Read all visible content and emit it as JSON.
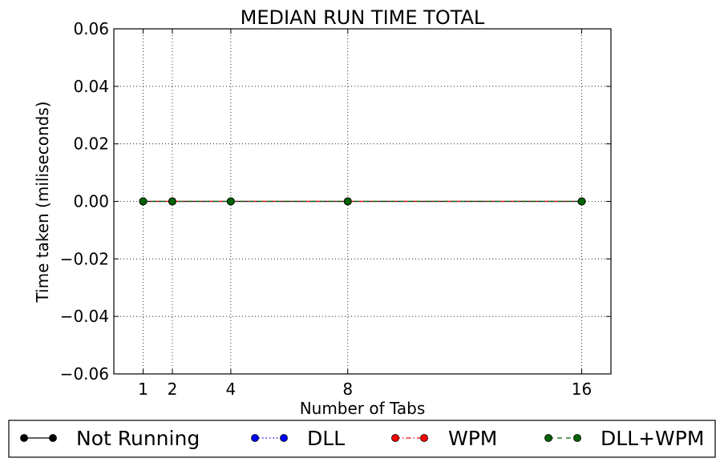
{
  "chart_data": {
    "type": "line",
    "title": "MEDIAN RUN TIME TOTAL",
    "xlabel": "Number of Tabs",
    "ylabel": "Time taken (miliseconds)",
    "xlim": [
      0,
      17
    ],
    "ylim": [
      -0.06,
      0.06
    ],
    "x_ticks": [
      1,
      2,
      4,
      8,
      16
    ],
    "y_ticks": [
      0.06,
      0.04,
      0.02,
      0.0,
      -0.02,
      -0.04,
      -0.06
    ],
    "y_tick_labels": [
      "0.06",
      "0.04",
      "0.02",
      "0.00",
      "−0.02",
      "−0.04",
      "−0.06"
    ],
    "grid": true,
    "legend_position": "bottom-outside",
    "x": [
      1,
      2,
      4,
      8,
      16
    ],
    "series": [
      {
        "name": "Not Running",
        "values": [
          0,
          0,
          0,
          0,
          0
        ],
        "color": "#000000",
        "dash": "solid"
      },
      {
        "name": "DLL",
        "values": [
          0,
          0,
          0,
          0,
          0
        ],
        "color": "#0000ff",
        "dash": "dotted"
      },
      {
        "name": "WPM",
        "values": [
          0,
          0,
          0,
          0,
          0
        ],
        "color": "#ff0000",
        "dash": "dashdot"
      },
      {
        "name": "DLL+WPM",
        "values": [
          0,
          0,
          0,
          0,
          0
        ],
        "color": "#006400",
        "dash": "dashed"
      }
    ]
  }
}
